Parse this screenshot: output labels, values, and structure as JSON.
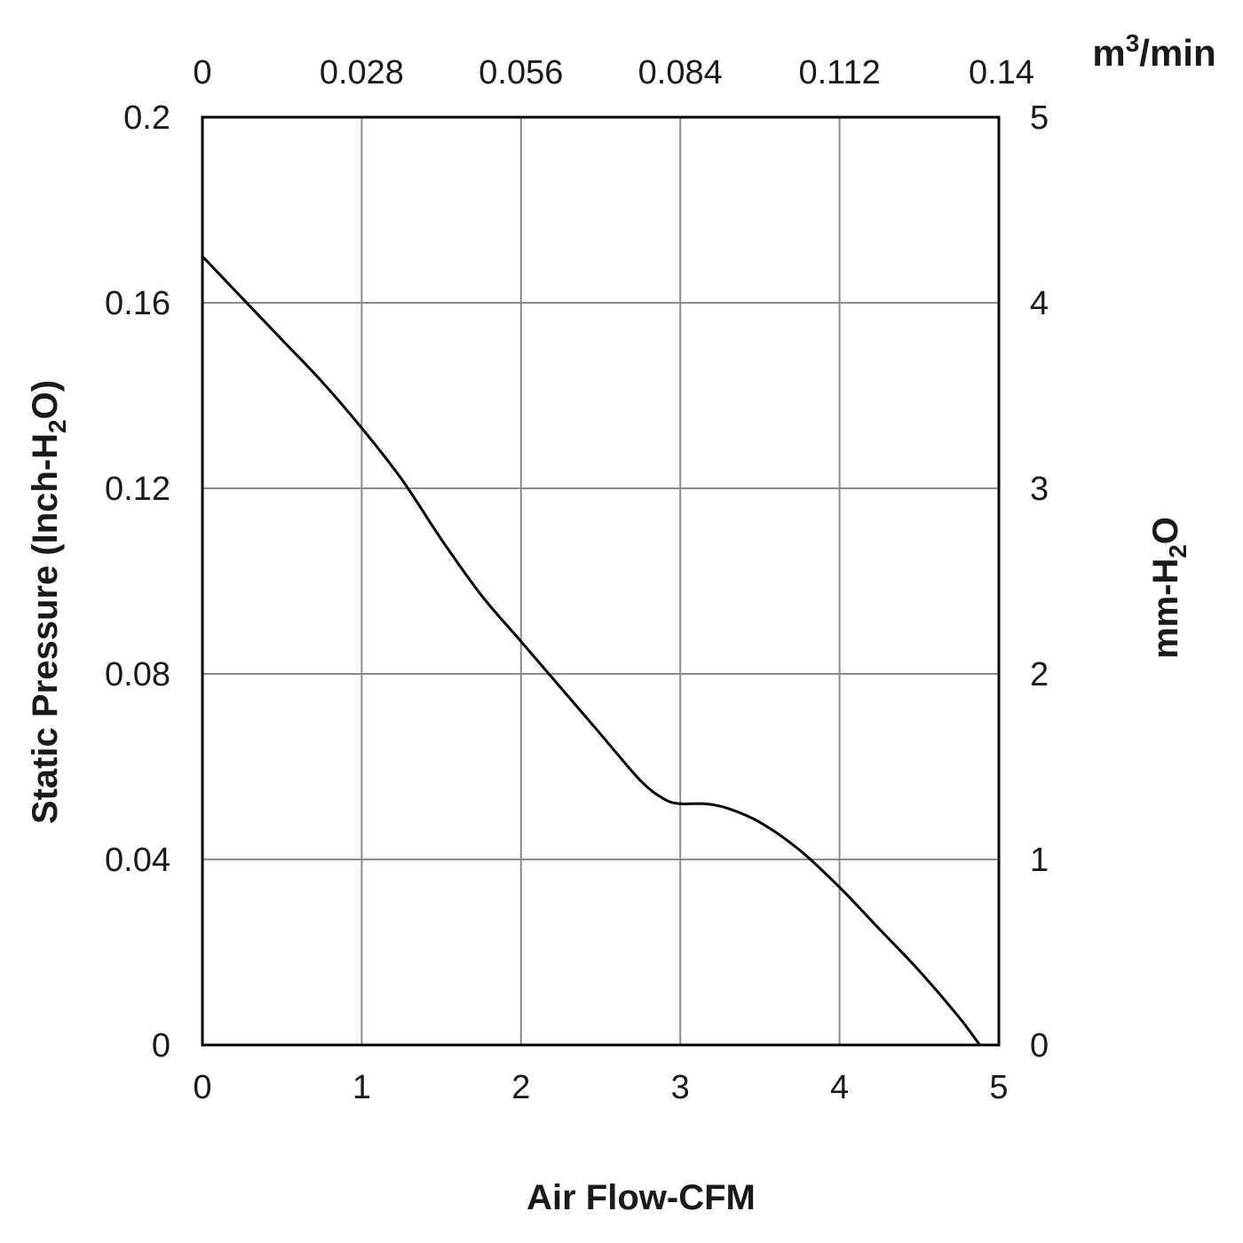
{
  "chart_data": {
    "type": "line",
    "x": [
      0,
      0.25,
      0.5,
      0.75,
      1.0,
      1.25,
      1.5,
      1.75,
      2.0,
      2.25,
      2.5,
      2.75,
      2.9,
      3.0,
      3.15,
      3.3,
      3.5,
      3.75,
      4.0,
      4.25,
      4.5,
      4.75,
      4.88
    ],
    "series": [
      {
        "values": [
          0.17,
          0.161,
          0.152,
          0.143,
          0.133,
          0.122,
          0.109,
          0.097,
          0.087,
          0.077,
          0.067,
          0.057,
          0.053,
          0.052,
          0.052,
          0.051,
          0.048,
          0.042,
          0.034,
          0.025,
          0.016,
          0.006,
          0.0
        ]
      }
    ],
    "xlabel": "Air Flow-CFM",
    "xlim": [
      0,
      5
    ],
    "xticks": [
      "0",
      "1",
      "2",
      "3",
      "4",
      "5"
    ],
    "ylabel": "Static Pressure (Inch-H2O)",
    "ylabel_parts": [
      "Static Pressure (Inch-H",
      "2",
      "O)"
    ],
    "ylim": [
      0,
      0.2
    ],
    "yticks": [
      "0",
      "0.04",
      "0.08",
      "0.12",
      "0.16",
      "0.2"
    ],
    "x2label": "m3/min",
    "x2label_parts": [
      "m",
      "3",
      "/min"
    ],
    "x2ticks": [
      "0",
      "0.028",
      "0.056",
      "0.084",
      "0.112",
      "0.14"
    ],
    "y2label": "mm-H2O",
    "y2label_parts": [
      "mm-H",
      "2",
      "O"
    ],
    "y2ticks": [
      "0",
      "1",
      "2",
      "3",
      "4",
      "5"
    ],
    "grid": true,
    "legend": "none"
  }
}
